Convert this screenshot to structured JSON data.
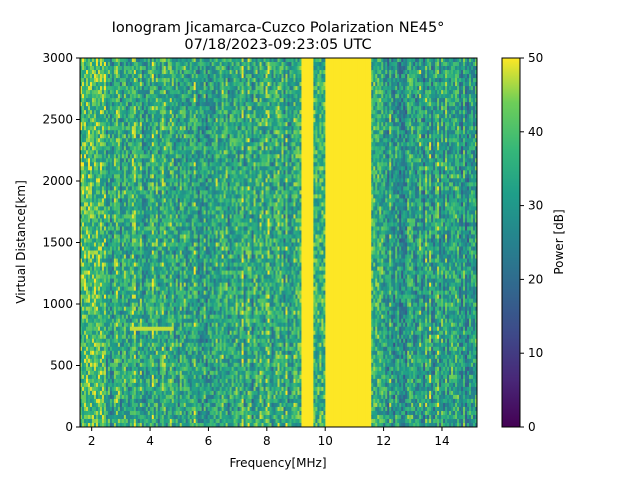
{
  "chart_data": {
    "type": "heatmap",
    "title": "Ionogram Jicamarca-Cuzco Polarization NE45°",
    "subtitle": "07/18/2023-09:23:05 UTC",
    "xlabel": "Frequency[MHz]",
    "ylabel": "Virtual Distance[km]",
    "xlim": [
      1.6,
      15.2
    ],
    "ylim": [
      0,
      3000
    ],
    "x_ticks": [
      2,
      4,
      6,
      8,
      10,
      12,
      14
    ],
    "y_ticks": [
      0,
      500,
      1000,
      1500,
      2000,
      2500,
      3000
    ],
    "colorbar": {
      "label": "Power [dB]",
      "range": [
        0,
        50
      ],
      "ticks": [
        0,
        10,
        20,
        30,
        40,
        50
      ],
      "colormap": "viridis"
    },
    "features": [
      {
        "description_value": "saturated broadband band",
        "x_range_mhz": [
          10.0,
          11.6
        ],
        "power_db": 50
      },
      {
        "description_value": "saturated band",
        "x_range_mhz": [
          9.2,
          9.6
        ],
        "power_db": 50
      },
      {
        "description_value": "low-power trace",
        "x_range_mhz": [
          3.3,
          4.8
        ],
        "distance_km": [
          780,
          830
        ],
        "power_db": 48
      }
    ],
    "grid": false,
    "colors": {
      "low": "#440154",
      "mid": "#21918c",
      "high": "#fde725"
    }
  }
}
